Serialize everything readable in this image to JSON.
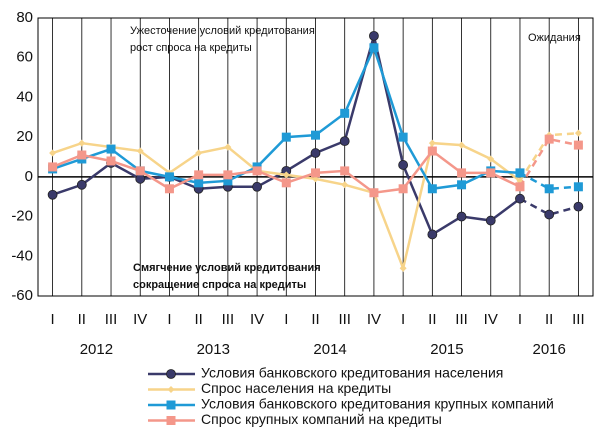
{
  "chart_data": {
    "type": "line",
    "categories": [
      "I",
      "II",
      "III",
      "IV",
      "I",
      "II",
      "III",
      "IV",
      "I",
      "II",
      "III",
      "IV",
      "I",
      "II",
      "III",
      "IV",
      "I",
      "II",
      "III"
    ],
    "groups": [
      {
        "label": "2012",
        "start": 0,
        "end": 3
      },
      {
        "label": "2013",
        "start": 4,
        "end": 7
      },
      {
        "label": "2014",
        "start": 8,
        "end": 11
      },
      {
        "label": "2015",
        "start": 12,
        "end": 15
      },
      {
        "label": "2016",
        "start": 16,
        "end": 18
      }
    ],
    "series": [
      {
        "name": "Условия банковского кредитования населения",
        "color": "#3a3a6a",
        "marker": "circle",
        "values": [
          -9,
          -4,
          7,
          -1,
          0,
          -6,
          -5,
          -5,
          3,
          12,
          18,
          71,
          6,
          -29,
          -20,
          -22,
          -11,
          -19,
          -15
        ]
      },
      {
        "name": "Спрос населения на кредиты",
        "color": "#f7d48a",
        "marker": "diamond",
        "values": [
          12,
          17,
          15,
          13,
          2,
          12,
          15,
          3,
          1,
          -1,
          -4,
          -8,
          -46,
          17,
          16,
          9,
          -2,
          21,
          22
        ]
      },
      {
        "name": "Условия банковского кредитования крупных компаний",
        "color": "#1f9ad6",
        "marker": "square",
        "values": [
          4,
          9,
          14,
          3,
          0,
          -3,
          -2,
          5,
          20,
          21,
          32,
          65,
          20,
          -6,
          -4,
          3,
          2,
          -6,
          -5
        ]
      },
      {
        "name": "Спрос крупных компаний на кредиты",
        "color": "#f4978a",
        "marker": "square",
        "values": [
          5,
          11,
          8,
          3,
          -6,
          1,
          1,
          3,
          -3,
          2,
          3,
          -8,
          -6,
          13,
          2,
          2,
          -5,
          19,
          16
        ]
      }
    ],
    "dashed_from": 16,
    "ylim": [
      -60,
      80
    ],
    "yticks": [
      -60,
      -40,
      -20,
      0,
      20,
      40,
      60,
      80
    ],
    "grid": true,
    "annotations": {
      "top": [
        "Ужесточение условий кредитования",
        "рост спроса на кредиты"
      ],
      "bottom": [
        "Смягчение условий кредитования",
        "сокращение спроса на кредиты"
      ],
      "forecast": "Ожидания"
    }
  }
}
